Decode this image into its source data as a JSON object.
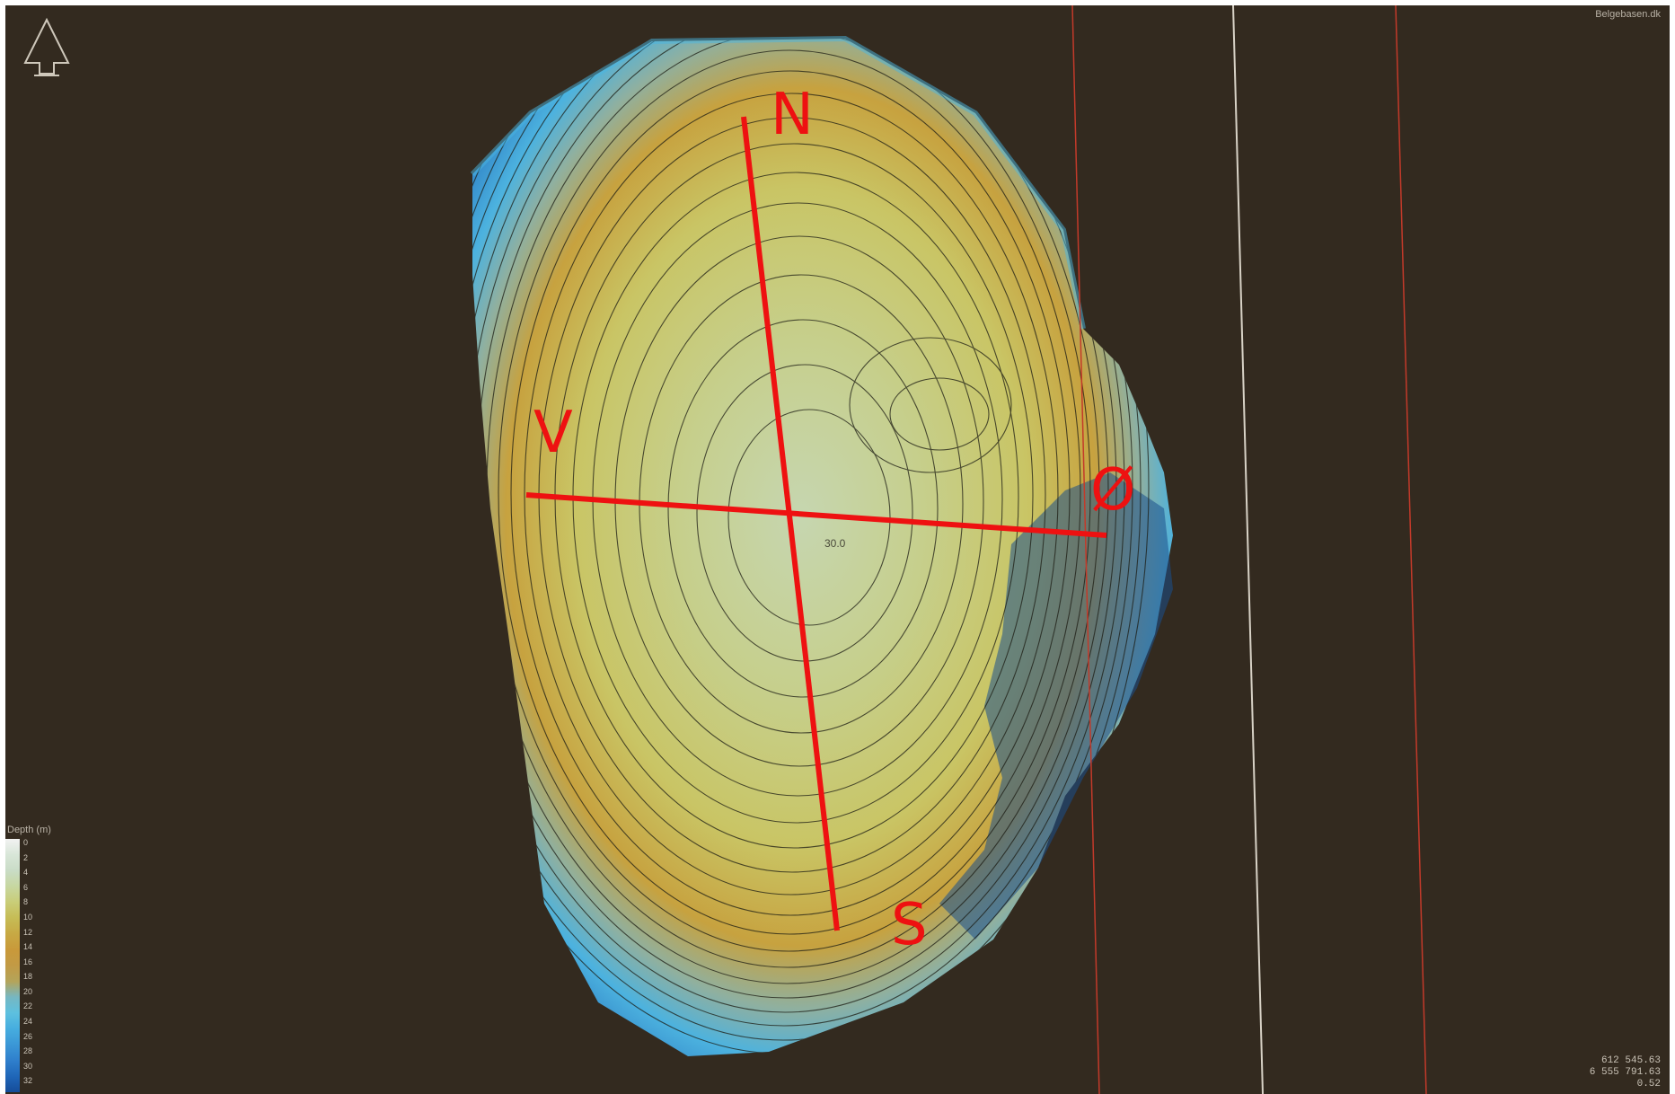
{
  "attribution": "Belgebasen.dk",
  "coordinates": [
    "612 545.63",
    "6 555 791.63",
    "0.52"
  ],
  "spot_depth": "30.0",
  "legend": {
    "title": "Depth (m)",
    "levels": [
      "0",
      "2",
      "4",
      "6",
      "8",
      "10",
      "12",
      "14",
      "16",
      "18",
      "20",
      "22",
      "24",
      "26",
      "28",
      "30",
      "32"
    ],
    "colors": [
      "#f2f2f2",
      "#d8e6d8",
      "#c9dcc6",
      "#c7d7a0",
      "#c9cd78",
      "#c6bc55",
      "#c7a944",
      "#c9993a",
      "#c29a45",
      "#b4a45a",
      "#76b7c2",
      "#5dc0df",
      "#46addf",
      "#3b97d6",
      "#2f7fcc",
      "#1f66b8",
      "#154c99"
    ]
  },
  "section_labels": {
    "north": "N",
    "south": "S",
    "west": "V",
    "east": "Ø"
  },
  "icons": {
    "north_arrow": "north-arrow-icon"
  },
  "colors": {
    "background": "#332a1f",
    "section_line": "#ee1111",
    "shallow": "#c9d28a",
    "mid": "#c7a03f",
    "deep": "#1f66b8"
  }
}
